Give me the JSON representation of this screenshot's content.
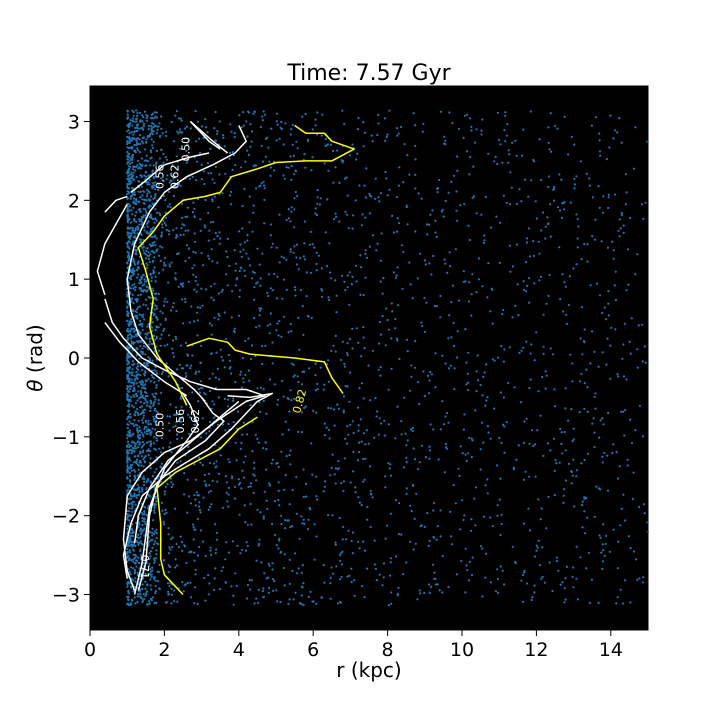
{
  "chart_data": {
    "type": "scatter",
    "title": "Time: 7.57 Gyr",
    "xlabel": "r (kpc)",
    "ylabel_symbol": "θ",
    "ylabel_rest": " (rad)",
    "xlim": [
      0,
      15
    ],
    "ylim": [
      -3.45,
      3.45
    ],
    "xticks": [
      0,
      2,
      4,
      6,
      8,
      10,
      12,
      14
    ],
    "yticks": [
      -3,
      -2,
      -1,
      0,
      1,
      2,
      3
    ],
    "background": "#000000",
    "point_color": "#1f77b4",
    "grid": false,
    "legend": "none",
    "particles": {
      "r_range": [
        1.0,
        15.0
      ],
      "theta_range": [
        -3.14,
        3.14
      ],
      "density": "highest near r = 1-2 kpc, decreasing outward"
    },
    "contours": [
      {
        "level": 0.5,
        "color": "#ffffff",
        "paths": [
          [
            [
              2.7,
              3.0
            ],
            [
              3.2,
              2.75
            ],
            [
              3.5,
              2.65
            ]
          ],
          [
            [
              2.5,
              -0.45
            ],
            [
              2.7,
              -0.6
            ],
            [
              2.9,
              -0.85
            ],
            [
              2.6,
              -1.05
            ],
            [
              2.0,
              -1.4
            ],
            [
              1.6,
              -1.9
            ],
            [
              1.4,
              -2.6
            ],
            [
              1.2,
              -3.0
            ]
          ]
        ]
      },
      {
        "level": 0.56,
        "color": "#ffffff",
        "paths": [
          [
            [
              2.7,
              3.0
            ],
            [
              3.3,
              2.75
            ],
            [
              3.7,
              2.6
            ]
          ],
          [
            [
              3.0,
              -0.5
            ],
            [
              3.3,
              -0.7
            ],
            [
              3.6,
              -0.8
            ],
            [
              3.1,
              -1.05
            ],
            [
              2.3,
              -1.3
            ],
            [
              1.8,
              -1.6
            ],
            [
              1.6,
              -2.0
            ],
            [
              1.5,
              -2.6
            ],
            [
              1.3,
              -2.95
            ]
          ]
        ]
      },
      {
        "level": 0.62,
        "color": "#ffffff",
        "paths": [
          [
            [
              4.0,
              2.95
            ],
            [
              4.2,
              2.75
            ],
            [
              3.9,
              2.6
            ],
            [
              3.3,
              2.45
            ],
            [
              2.6,
              2.3
            ],
            [
              2.0,
              2.1
            ],
            [
              1.6,
              1.85
            ],
            [
              1.2,
              1.45
            ],
            [
              1.0,
              1.0
            ],
            [
              1.1,
              0.6
            ],
            [
              1.3,
              0.3
            ],
            [
              1.8,
              0.0
            ],
            [
              2.3,
              -0.2
            ],
            [
              2.8,
              -0.4
            ],
            [
              3.1,
              -0.55
            ]
          ],
          [
            [
              4.0,
              -0.55
            ],
            [
              3.5,
              -0.75
            ],
            [
              3.0,
              -0.95
            ],
            [
              2.5,
              -1.15
            ],
            [
              2.1,
              -1.3
            ],
            [
              1.6,
              -1.65
            ],
            [
              1.3,
              -2.0
            ],
            [
              1.2,
              -2.35
            ]
          ]
        ]
      },
      {
        "level": 0.71,
        "color": "#ffffff",
        "paths": [
          [
            [
              1.1,
              2.1
            ],
            [
              1.5,
              2.25
            ],
            [
              2.0,
              2.45
            ],
            [
              2.7,
              2.55
            ],
            [
              3.2,
              2.6
            ]
          ],
          [
            [
              1.0,
              2.05
            ],
            [
              0.7,
              2.0
            ],
            [
              0.4,
              1.85
            ]
          ],
          [
            [
              1.0,
              1.95
            ],
            [
              0.7,
              1.7
            ],
            [
              0.4,
              1.45
            ],
            [
              0.2,
              1.1
            ],
            [
              0.4,
              0.8
            ]
          ],
          [
            [
              0.4,
              0.75
            ],
            [
              0.6,
              0.45
            ],
            [
              0.9,
              0.25
            ],
            [
              1.4,
              0.0
            ],
            [
              2.0,
              -0.15
            ],
            [
              2.7,
              -0.3
            ],
            [
              3.4,
              -0.4
            ],
            [
              4.2,
              -0.4
            ],
            [
              4.7,
              -0.48
            ],
            [
              4.2,
              -0.55
            ],
            [
              3.4,
              -0.8
            ],
            [
              2.7,
              -1.05
            ],
            [
              2.0,
              -1.2
            ],
            [
              1.4,
              -1.45
            ],
            [
              1.0,
              -1.75
            ],
            [
              0.9,
              -2.3
            ],
            [
              1.0,
              -2.7
            ],
            [
              1.2,
              -2.95
            ]
          ],
          [
            [
              0.4,
              0.45
            ],
            [
              0.8,
              0.2
            ],
            [
              1.3,
              -0.05
            ],
            [
              2.0,
              -0.3
            ],
            [
              2.6,
              -0.48
            ]
          ],
          [
            [
              3.7,
              -0.48
            ],
            [
              4.3,
              -0.5
            ],
            [
              4.9,
              -0.45
            ],
            [
              4.5,
              -0.55
            ],
            [
              3.8,
              -0.9
            ],
            [
              3.2,
              -1.15
            ],
            [
              2.5,
              -1.35
            ],
            [
              2.0,
              -1.5
            ],
            [
              1.4,
              -1.75
            ],
            [
              1.1,
              -2.1
            ],
            [
              0.9,
              -2.5
            ],
            [
              1.0,
              -2.8
            ]
          ]
        ]
      },
      {
        "level": 0.82,
        "color": "#ffff00",
        "paths": [
          [
            [
              5.5,
              2.95
            ],
            [
              5.8,
              2.85
            ],
            [
              6.3,
              2.85
            ],
            [
              6.5,
              2.75
            ],
            [
              7.1,
              2.65
            ],
            [
              6.5,
              2.5
            ],
            [
              5.8,
              2.5
            ],
            [
              5.0,
              2.48
            ],
            [
              4.5,
              2.4
            ],
            [
              3.8,
              2.3
            ],
            [
              3.5,
              2.1
            ],
            [
              3.1,
              2.05
            ],
            [
              2.5,
              2.0
            ],
            [
              2.0,
              1.8
            ],
            [
              1.7,
              1.6
            ],
            [
              1.3,
              1.4
            ],
            [
              1.5,
              1.1
            ],
            [
              1.7,
              0.75
            ],
            [
              1.6,
              0.4
            ],
            [
              1.8,
              0.05
            ],
            [
              2.3,
              -0.3
            ],
            [
              2.6,
              -0.6
            ]
          ],
          [
            [
              2.6,
              0.15
            ],
            [
              3.2,
              0.25
            ],
            [
              3.7,
              0.2
            ],
            [
              3.9,
              0.1
            ],
            [
              4.3,
              0.05
            ],
            [
              5.5,
              0.0
            ],
            [
              6.3,
              -0.05
            ],
            [
              6.5,
              -0.25
            ],
            [
              6.8,
              -0.45
            ]
          ],
          [
            [
              4.5,
              -0.75
            ],
            [
              4.0,
              -0.9
            ],
            [
              3.5,
              -1.15
            ],
            [
              2.9,
              -1.3
            ],
            [
              2.3,
              -1.45
            ],
            [
              1.8,
              -1.65
            ],
            [
              1.9,
              -2.1
            ],
            [
              1.9,
              -2.55
            ],
            [
              2.0,
              -2.75
            ],
            [
              2.5,
              -3.0
            ]
          ]
        ]
      }
    ],
    "contour_labels": [
      {
        "text": "0.50",
        "r": 2.6,
        "theta": 2.65,
        "rotation": -90,
        "color": "#ffffff"
      },
      {
        "text": "0.56",
        "r": 1.9,
        "theta": 2.3,
        "rotation": -90,
        "color": "#ffffff"
      },
      {
        "text": "0.62",
        "r": 2.3,
        "theta": 2.3,
        "rotation": -90,
        "color": "#ffffff"
      },
      {
        "text": "0.50",
        "r": 1.9,
        "theta": -0.85,
        "rotation": -90,
        "color": "#ffffff"
      },
      {
        "text": "0.56",
        "r": 2.45,
        "theta": -0.8,
        "rotation": -90,
        "color": "#ffffff"
      },
      {
        "text": "0.62",
        "r": 2.85,
        "theta": -0.8,
        "rotation": -90,
        "color": "#ffffff"
      },
      {
        "text": "0.71",
        "r": 1.45,
        "theta": -2.65,
        "rotation": 90,
        "color": "#ffffff"
      },
      {
        "text": "0.82",
        "r": 5.65,
        "theta": -0.55,
        "rotation": -75,
        "color": "#ffff00"
      }
    ]
  }
}
